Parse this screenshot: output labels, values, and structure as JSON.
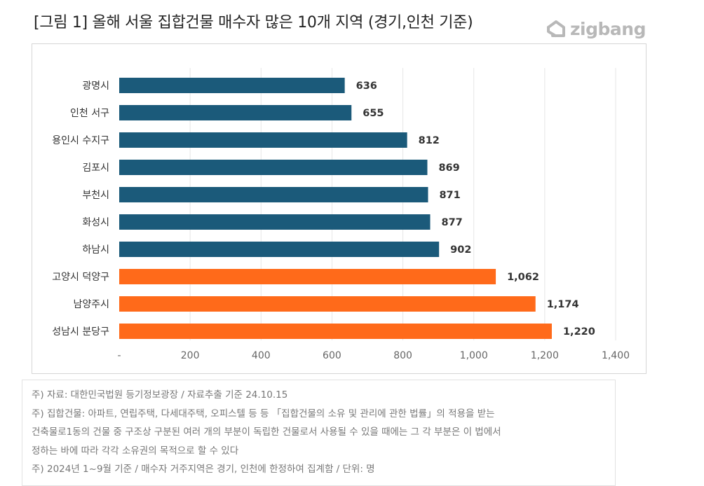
{
  "title": "[그림 1] 올해 서울 집합건물 매수자 많은 10개 지역 (경기,인천 기준)",
  "logo": {
    "text": "zigbang",
    "icon": "zigbang-house-icon",
    "color": "#b8b8b8"
  },
  "chart_data": {
    "type": "bar",
    "orientation": "horizontal",
    "categories": [
      "광명시",
      "인천 서구",
      "용인시 수지구",
      "김포시",
      "부천시",
      "화성시",
      "하남시",
      "고양시 덕양구",
      "남양주시",
      "성남시 분당구"
    ],
    "values": [
      636,
      655,
      812,
      869,
      871,
      877,
      902,
      1062,
      1174,
      1220
    ],
    "value_labels": [
      "636",
      "655",
      "812",
      "869",
      "871",
      "877",
      "902",
      "1,062",
      "1,174",
      "1,220"
    ],
    "highlight": [
      false,
      false,
      false,
      false,
      false,
      false,
      false,
      true,
      true,
      true
    ],
    "colors": {
      "default": "#1b5a7a",
      "highlight": "#ff6a1a"
    },
    "xlim": [
      0,
      1400
    ],
    "xticks": [
      0,
      200,
      400,
      600,
      800,
      1000,
      1200,
      1400
    ],
    "xtick_labels": [
      "-",
      "200",
      "400",
      "600",
      "800",
      "1,000",
      "1,200",
      "1,400"
    ],
    "grid": "vertical",
    "title": "",
    "xlabel": "",
    "ylabel": ""
  },
  "notes": [
    "주) 자료: 대한민국법원 등기정보광장 / 자료추출 기준 24.10.15",
    "주) 집합건물: 아파트, 연립주택, 다세대주택, 오피스텔 등 등 「집합건물의 소유 및 관리에 관한 법률」의 적용을 받는",
    "건축물로1동의 건물 중 구조상 구분된 여러 개의 부분이 독립한 건물로서 사용될 수 있을 때에는 그 각 부분은 이 법에서",
    "정하는 바에 따라 각각 소유권의 목적으로 할 수 있다",
    "주) 2024년 1~9월 기준 / 매수자 거주지역은 경기, 인천에 한정하여 집계함 / 단위: 명"
  ]
}
